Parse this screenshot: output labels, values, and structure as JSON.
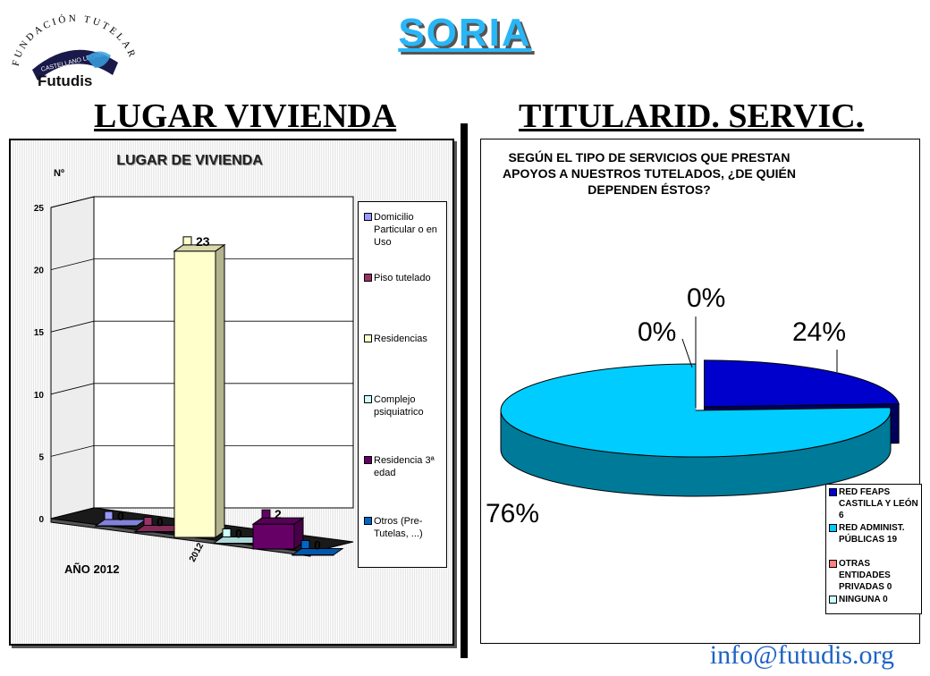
{
  "page": {
    "title": "SORIA",
    "section_left": "LUGAR VIVIENDA",
    "section_right": "TITULARID. SERVIC.",
    "email": "info@futudis.org"
  },
  "logo": {
    "arc_text": "FUNDACIÓN TUTELAR",
    "ribbon_text": "CASTELLANO LEONESA",
    "brand": "Futudis"
  },
  "chart_data": [
    {
      "type": "bar",
      "title": "LUGAR DE VIVIENDA",
      "ylabel": "Nº",
      "xlabel": "AÑO 2012",
      "categories": [
        "2012"
      ],
      "ylim": [
        0,
        25
      ],
      "yticks": [
        0,
        5,
        10,
        15,
        20,
        25
      ],
      "grid": true,
      "legend_position": "right",
      "series": [
        {
          "name": "Domicilio Particular o en Uso",
          "values": [
            0
          ],
          "color": "#9999ff"
        },
        {
          "name": "Piso tutelado",
          "values": [
            0
          ],
          "color": "#993366"
        },
        {
          "name": "Residencias",
          "values": [
            23
          ],
          "color": "#ffffcc"
        },
        {
          "name": "Complejo psiquiatrico",
          "values": [
            0
          ],
          "color": "#ccffff"
        },
        {
          "name": "Residencia 3ª edad",
          "values": [
            2
          ],
          "color": "#660066"
        },
        {
          "name": "Otros (Pre-Tutelas, ...)",
          "values": [
            0
          ],
          "color": "#0066cc"
        }
      ]
    },
    {
      "type": "pie",
      "title": "SEGÚN EL TIPO DE SERVICIOS QUE PRESTAN APOYOS A NUESTROS TUTELADOS, ¿DE QUIÉN DEPENDEN ÉSTOS?",
      "legend_position": "bottom-right",
      "slices": [
        {
          "label": "RED FEAPS CASTILLA Y LEÓN 6",
          "value": 6,
          "percent_label": "24%",
          "color": "#0000cc"
        },
        {
          "label": "RED ADMINIST. PÚBLICAS 19",
          "value": 19,
          "percent_label": "76%",
          "color": "#00ccff"
        },
        {
          "label": "OTRAS ENTIDADES PRIVADAS 0",
          "value": 0,
          "percent_label": "0%",
          "color": "#ff8080"
        },
        {
          "label": "NINGUNA 0",
          "value": 0,
          "percent_label": "0%",
          "color": "#ccffff"
        }
      ]
    }
  ]
}
